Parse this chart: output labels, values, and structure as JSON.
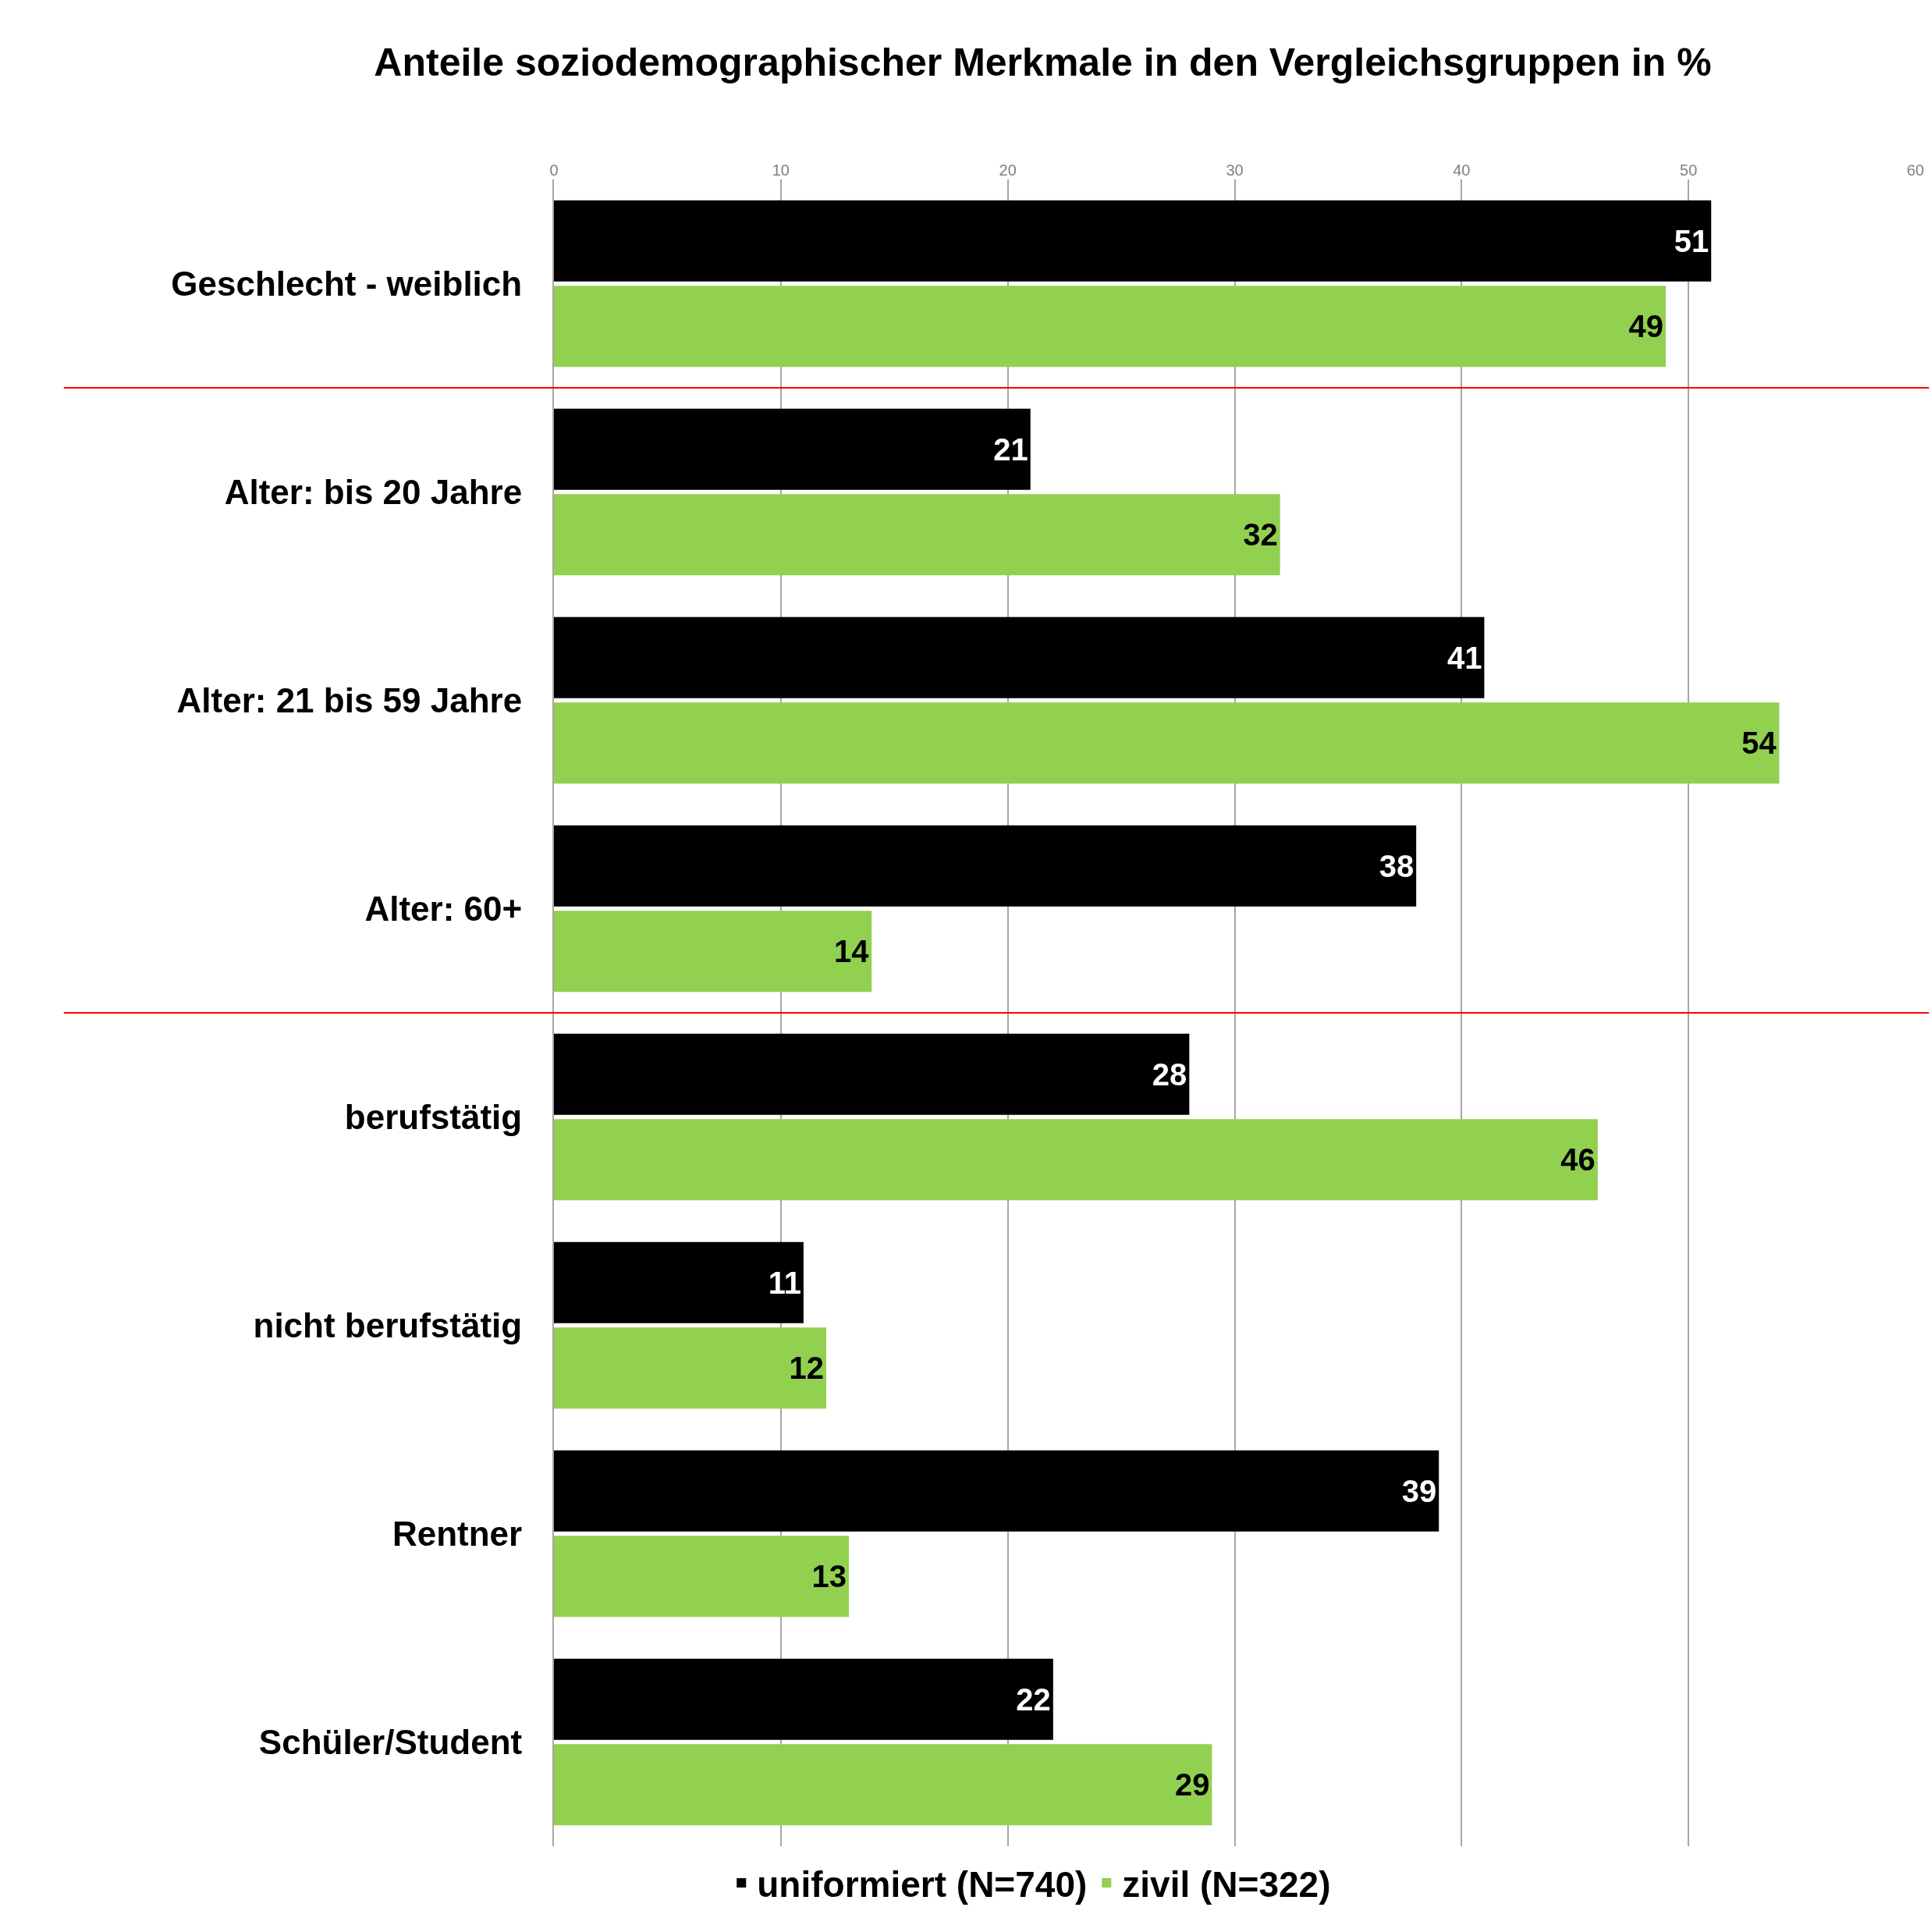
{
  "chart_data": {
    "type": "bar",
    "orientation": "horizontal",
    "title": "Anteile soziodemographischer Merkmale in den Vergleichsgruppen in %",
    "categories": [
      "Geschlecht - weiblich",
      "Alter: bis 20 Jahre",
      "Alter: 21 bis 59 Jahre",
      "Alter: 60+",
      "berufstätig",
      "nicht berufstätig",
      "Rentner",
      "Schüler/Student"
    ],
    "series": [
      {
        "name": "uniformiert (N=740)",
        "color": "#000000",
        "values": [
          51,
          21,
          41,
          38,
          28,
          11,
          39,
          22
        ]
      },
      {
        "name": "zivil (N=322)",
        "color": "#92d050",
        "values": [
          49,
          32,
          54,
          14,
          46,
          12,
          13,
          29
        ]
      }
    ],
    "xlim": [
      0,
      60
    ],
    "xticks": [
      0,
      10,
      20,
      30,
      40,
      50,
      60
    ],
    "grid": "x",
    "data_labels": true,
    "legend": "bottom"
  }
}
